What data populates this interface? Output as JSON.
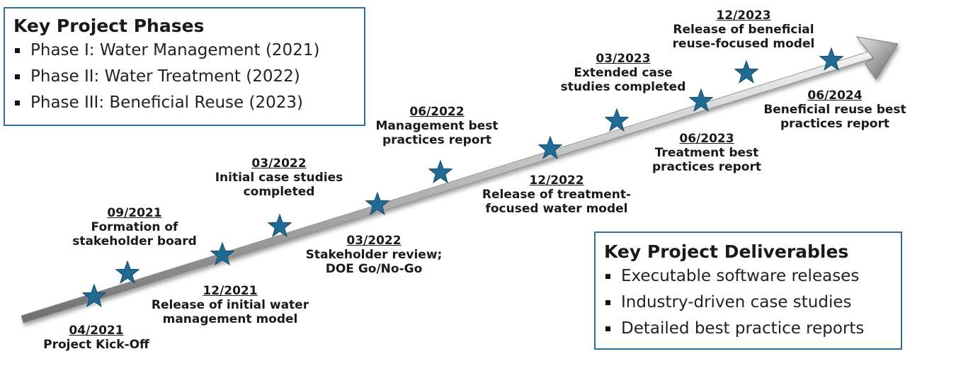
{
  "phases_box": {
    "title": "Key Project Phases",
    "items": [
      "Phase I: Water Management (2021)",
      "Phase II: Water Treatment (2022)",
      "Phase III: Beneficial Reuse (2023)"
    ]
  },
  "deliverables_box": {
    "title": "Key Project Deliverables",
    "items": [
      "Executable software releases",
      "Industry-driven case studies",
      "Detailed best practice reports"
    ]
  },
  "milestones": [
    {
      "date": "04/2021",
      "text": "Project Kick-Off"
    },
    {
      "date": "09/2021",
      "text": "Formation of\nstakeholder board"
    },
    {
      "date": "12/2021",
      "text": "Release of initial water\nmanagement model"
    },
    {
      "date": "03/2022",
      "text": "Initial case studies\ncompleted"
    },
    {
      "date": "03/2022",
      "text": "Stakeholder review;\nDOE Go/No-Go"
    },
    {
      "date": "06/2022",
      "text": "Management best\npractices report"
    },
    {
      "date": "12/2022",
      "text": "Release of treatment-\nfocused water model"
    },
    {
      "date": "03/2023",
      "text": "Extended case\nstudies completed"
    },
    {
      "date": "06/2023",
      "text": "Treatment best\npractices report"
    },
    {
      "date": "12/2023",
      "text": "Release of beneficial\nreuse-focused model"
    },
    {
      "date": "06/2024",
      "text": "Beneficial reuse best\npractices report"
    }
  ],
  "colors": {
    "box_border": "#2f6f9a",
    "star": "#1f6b94",
    "arrow_light": "#d9d9d9",
    "arrow_dark": "#7f7f7f"
  }
}
